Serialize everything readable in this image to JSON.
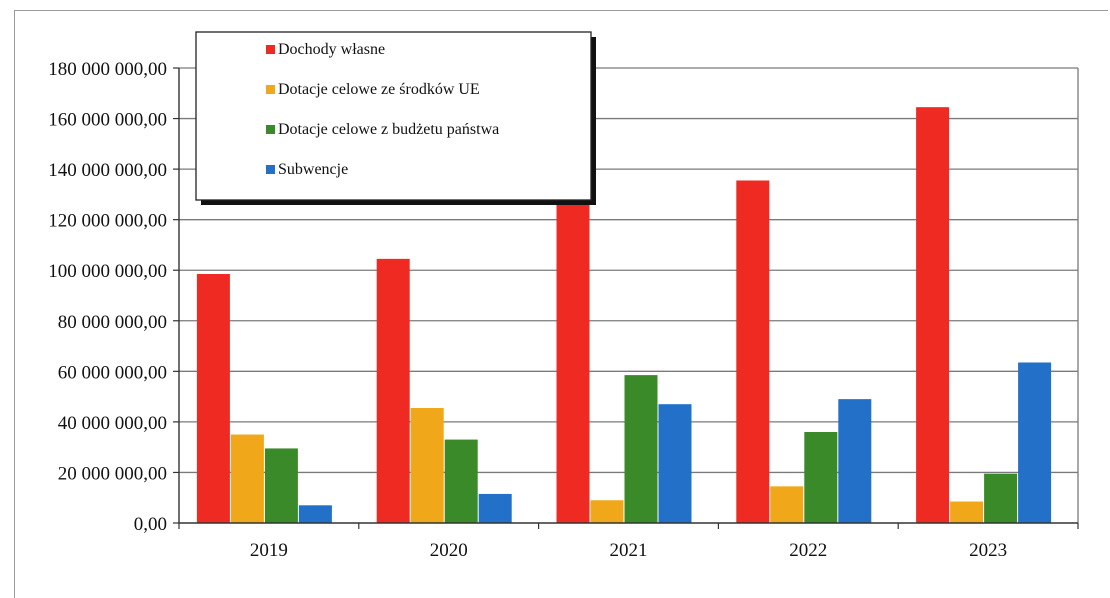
{
  "chart_data": {
    "type": "bar",
    "title": "",
    "xlabel": "",
    "ylabel": "",
    "categories": [
      "2019",
      "2020",
      "2021",
      "2022",
      "2023"
    ],
    "ylim": [
      0,
      180000000
    ],
    "yticks": [
      0,
      20000000,
      40000000,
      60000000,
      80000000,
      100000000,
      120000000,
      140000000,
      160000000,
      180000000
    ],
    "ytick_labels": [
      "0,00",
      "20 000 000,00",
      "40 000 000,00",
      "60 000 000,00",
      "80 000 000,00",
      "100 000 000,00",
      "120 000 000,00",
      "140 000 000,00",
      "160 000 000,00",
      "180 000 000,00"
    ],
    "grid": true,
    "legend_position": "top-left",
    "series": [
      {
        "name": "Dochody własne",
        "color": "#ee2a22",
        "values": [
          98500000,
          104500000,
          128000000,
          135500000,
          164500000
        ]
      },
      {
        "name": "Dotacje celowe ze środków UE",
        "color": "#f0a81a",
        "values": [
          35000000,
          45500000,
          9000000,
          14500000,
          8500000
        ]
      },
      {
        "name": "Dotacje celowe z budżetu państwa",
        "color": "#3a8a2a",
        "values": [
          29500000,
          33000000,
          58500000,
          36000000,
          19500000
        ]
      },
      {
        "name": "Subwencje",
        "color": "#2270c8",
        "values": [
          7000000,
          11500000,
          47000000,
          49000000,
          63500000
        ]
      }
    ]
  }
}
